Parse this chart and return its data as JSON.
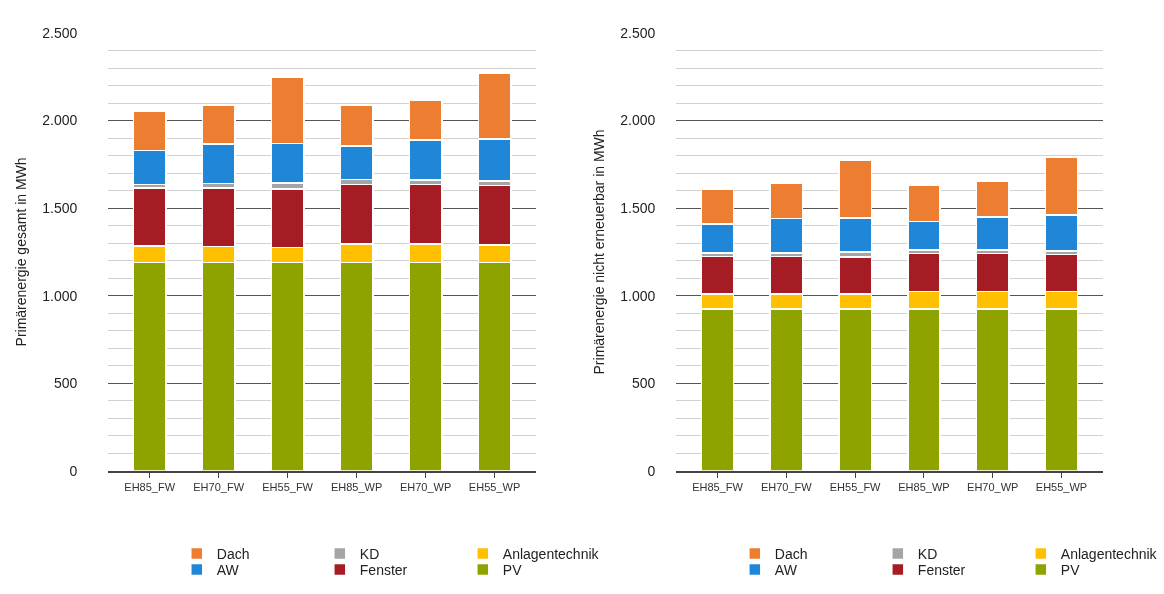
{
  "chart_data": [
    {
      "type": "bar",
      "stacked": true,
      "ylabel": "Primärenergie gesamt in MWh",
      "categories": [
        "EH85_FW",
        "EH70_FW",
        "EH55_FW",
        "EH85_WP",
        "EH70_WP",
        "EH55_WP"
      ],
      "series": [
        {
          "name": "PV",
          "color": "#8fa300",
          "values": [
            1190,
            1190,
            1190,
            1190,
            1190,
            1190
          ]
        },
        {
          "name": "Anlagentechnik",
          "color": "#ffc000",
          "values": [
            95,
            90,
            85,
            105,
            105,
            100
          ]
        },
        {
          "name": "Fenster",
          "color": "#a51c24",
          "values": [
            330,
            335,
            335,
            340,
            340,
            340
          ]
        },
        {
          "name": "KD",
          "color": "#a5a5a5",
          "values": [
            20,
            25,
            35,
            30,
            25,
            25
          ]
        },
        {
          "name": "AW",
          "color": "#1f86d8",
          "values": [
            195,
            225,
            225,
            190,
            230,
            240
          ]
        },
        {
          "name": "Dach",
          "color": "#ed7d31",
          "values": [
            225,
            225,
            375,
            230,
            225,
            375
          ]
        }
      ],
      "ylim": [
        0,
        2500
      ],
      "yticks": [
        0,
        {
          "value": 100,
          "label": null
        },
        {
          "value": 200,
          "label": null
        },
        {
          "value": 300,
          "label": null
        },
        {
          "value": 400,
          "label": null
        },
        {
          "value": 500,
          "label": "500"
        },
        {
          "value": 600,
          "label": null
        },
        {
          "value": 700,
          "label": null
        },
        {
          "value": 800,
          "label": null
        },
        {
          "value": 900,
          "label": null
        },
        {
          "value": 1000,
          "label": "1.000"
        },
        {
          "value": 1100,
          "label": null
        },
        {
          "value": 1200,
          "label": null
        },
        {
          "value": 1300,
          "label": null
        },
        {
          "value": 1400,
          "label": null
        },
        {
          "value": 1500,
          "label": "1.500"
        },
        {
          "value": 1600,
          "label": null
        },
        {
          "value": 1700,
          "label": null
        },
        {
          "value": 1800,
          "label": null
        },
        {
          "value": 1900,
          "label": null
        },
        {
          "value": 2000,
          "label": "2.000"
        },
        {
          "value": 2100,
          "label": null
        },
        {
          "value": 2200,
          "label": null
        },
        {
          "value": 2300,
          "label": null
        },
        {
          "value": 2400,
          "label": null
        },
        {
          "value": 2500,
          "label": "2.500"
        }
      ],
      "grid": "y",
      "legend": "bottom"
    },
    {
      "type": "bar",
      "stacked": true,
      "ylabel": "Primärenergie nicht erneuerbar in MWh",
      "categories": [
        "EH85_FW",
        "EH70_FW",
        "EH55_FW",
        "EH85_WP",
        "EH70_WP",
        "EH55_WP"
      ],
      "series": [
        {
          "name": "PV",
          "color": "#8fa300",
          "values": [
            925,
            925,
            925,
            925,
            925,
            925
          ]
        },
        {
          "name": "Anlagentechnik",
          "color": "#ffc000",
          "values": [
            85,
            85,
            85,
            100,
            100,
            100
          ]
        },
        {
          "name": "Fenster",
          "color": "#a51c24",
          "values": [
            215,
            215,
            210,
            215,
            215,
            210
          ]
        },
        {
          "name": "KD",
          "color": "#a5a5a5",
          "values": [
            20,
            20,
            30,
            20,
            20,
            20
          ]
        },
        {
          "name": "AW",
          "color": "#1f86d8",
          "values": [
            165,
            195,
            195,
            165,
            190,
            205
          ]
        },
        {
          "name": "Dach",
          "color": "#ed7d31",
          "values": [
            200,
            200,
            330,
            205,
            205,
            330
          ]
        }
      ],
      "ylim": [
        0,
        2500
      ],
      "yticks": [
        0,
        {
          "value": 100,
          "label": null
        },
        {
          "value": 200,
          "label": null
        },
        {
          "value": 300,
          "label": null
        },
        {
          "value": 400,
          "label": null
        },
        {
          "value": 500,
          "label": "500"
        },
        {
          "value": 600,
          "label": null
        },
        {
          "value": 700,
          "label": null
        },
        {
          "value": 800,
          "label": null
        },
        {
          "value": 900,
          "label": null
        },
        {
          "value": 1000,
          "label": "1.000"
        },
        {
          "value": 1100,
          "label": null
        },
        {
          "value": 1200,
          "label": null
        },
        {
          "value": 1300,
          "label": null
        },
        {
          "value": 1400,
          "label": null
        },
        {
          "value": 1500,
          "label": "1.500"
        },
        {
          "value": 1600,
          "label": null
        },
        {
          "value": 1700,
          "label": null
        },
        {
          "value": 1800,
          "label": null
        },
        {
          "value": 1900,
          "label": null
        },
        {
          "value": 2000,
          "label": "2.000"
        },
        {
          "value": 2100,
          "label": null
        },
        {
          "value": 2200,
          "label": null
        },
        {
          "value": 2300,
          "label": null
        },
        {
          "value": 2400,
          "label": null
        },
        {
          "value": 2500,
          "label": "2.500"
        }
      ],
      "grid": "y",
      "legend": "bottom"
    }
  ]
}
